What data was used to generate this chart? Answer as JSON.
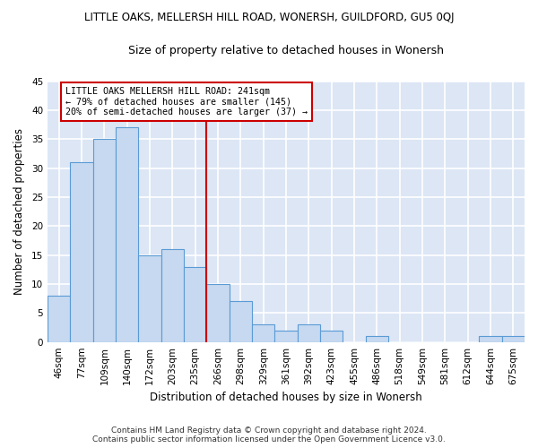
{
  "title": "LITTLE OAKS, MELLERSH HILL ROAD, WONERSH, GUILDFORD, GU5 0QJ",
  "subtitle": "Size of property relative to detached houses in Wonersh",
  "xlabel": "Distribution of detached houses by size in Wonersh",
  "ylabel": "Number of detached properties",
  "bin_labels": [
    "46sqm",
    "77sqm",
    "109sqm",
    "140sqm",
    "172sqm",
    "203sqm",
    "235sqm",
    "266sqm",
    "298sqm",
    "329sqm",
    "361sqm",
    "392sqm",
    "423sqm",
    "455sqm",
    "486sqm",
    "518sqm",
    "549sqm",
    "581sqm",
    "612sqm",
    "644sqm",
    "675sqm"
  ],
  "bar_values": [
    8,
    31,
    35,
    37,
    15,
    16,
    13,
    10,
    7,
    3,
    2,
    3,
    2,
    0,
    1,
    0,
    0,
    0,
    0,
    1,
    1
  ],
  "bar_color": "#c6d9f0",
  "bar_edge_color": "#5b9bd5",
  "background_color": "#dce6f5",
  "grid_color": "#ffffff",
  "ylim": [
    0,
    45
  ],
  "yticks": [
    0,
    5,
    10,
    15,
    20,
    25,
    30,
    35,
    40,
    45
  ],
  "annotation_text_line1": "LITTLE OAKS MELLERSH HILL ROAD: 241sqm",
  "annotation_text_line2": "← 79% of detached houses are smaller (145)",
  "annotation_text_line3": "20% of semi-detached houses are larger (37) →",
  "annotation_box_color": "#ffffff",
  "annotation_box_edge_color": "#cc0000",
  "red_line_color": "#cc0000",
  "fig_background": "#ffffff",
  "footer_line1": "Contains HM Land Registry data © Crown copyright and database right 2024.",
  "footer_line2": "Contains public sector information licensed under the Open Government Licence v3.0."
}
